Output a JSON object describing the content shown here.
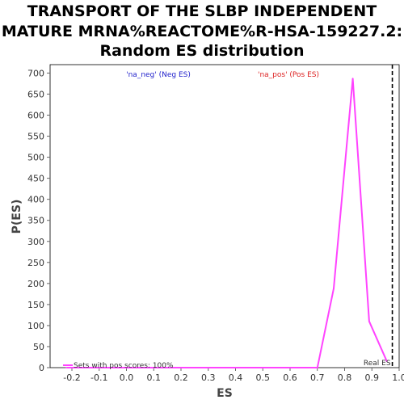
{
  "chart_data": {
    "type": "line",
    "title_lines": [
      "TRANSPORT OF THE SLBP INDEPENDENT",
      "MATURE MRNA%REACTOME%R-HSA-159227.2:",
      "Random ES distribution"
    ],
    "xlabel": "ES",
    "ylabel": "P(ES)",
    "xlim": [
      -0.28,
      1.0
    ],
    "ylim": [
      0,
      720
    ],
    "x_ticks": [
      "-0.2",
      "-0.1",
      "0.0",
      "0.1",
      "0.2",
      "0.3",
      "0.4",
      "0.5",
      "0.6",
      "0.7",
      "0.8",
      "0.9",
      "1.0"
    ],
    "y_ticks": [
      "0",
      "50",
      "100",
      "150",
      "200",
      "250",
      "300",
      "350",
      "400",
      "450",
      "500",
      "550",
      "600",
      "650",
      "700"
    ],
    "series": [
      {
        "name": "",
        "color": "#ff44ff",
        "x": [
          -0.22,
          -0.1,
          0.0,
          0.1,
          0.2,
          0.3,
          0.4,
          0.5,
          0.6,
          0.7,
          0.76,
          0.83,
          0.89,
          0.955
        ],
        "y": [
          0,
          0,
          0,
          0,
          0,
          0,
          0,
          0,
          0,
          0,
          188,
          687,
          110,
          15
        ]
      }
    ],
    "real_es": 0.975,
    "real_es_label": "Real ES",
    "neg_label": "'na_neg' (Neg ES)",
    "neg_color": "#2222cc",
    "pos_label": "'na_pos' (Pos ES)",
    "pos_color": "#dd2222",
    "legend_text": "Sets with pos scores: 100%",
    "grid": false
  }
}
